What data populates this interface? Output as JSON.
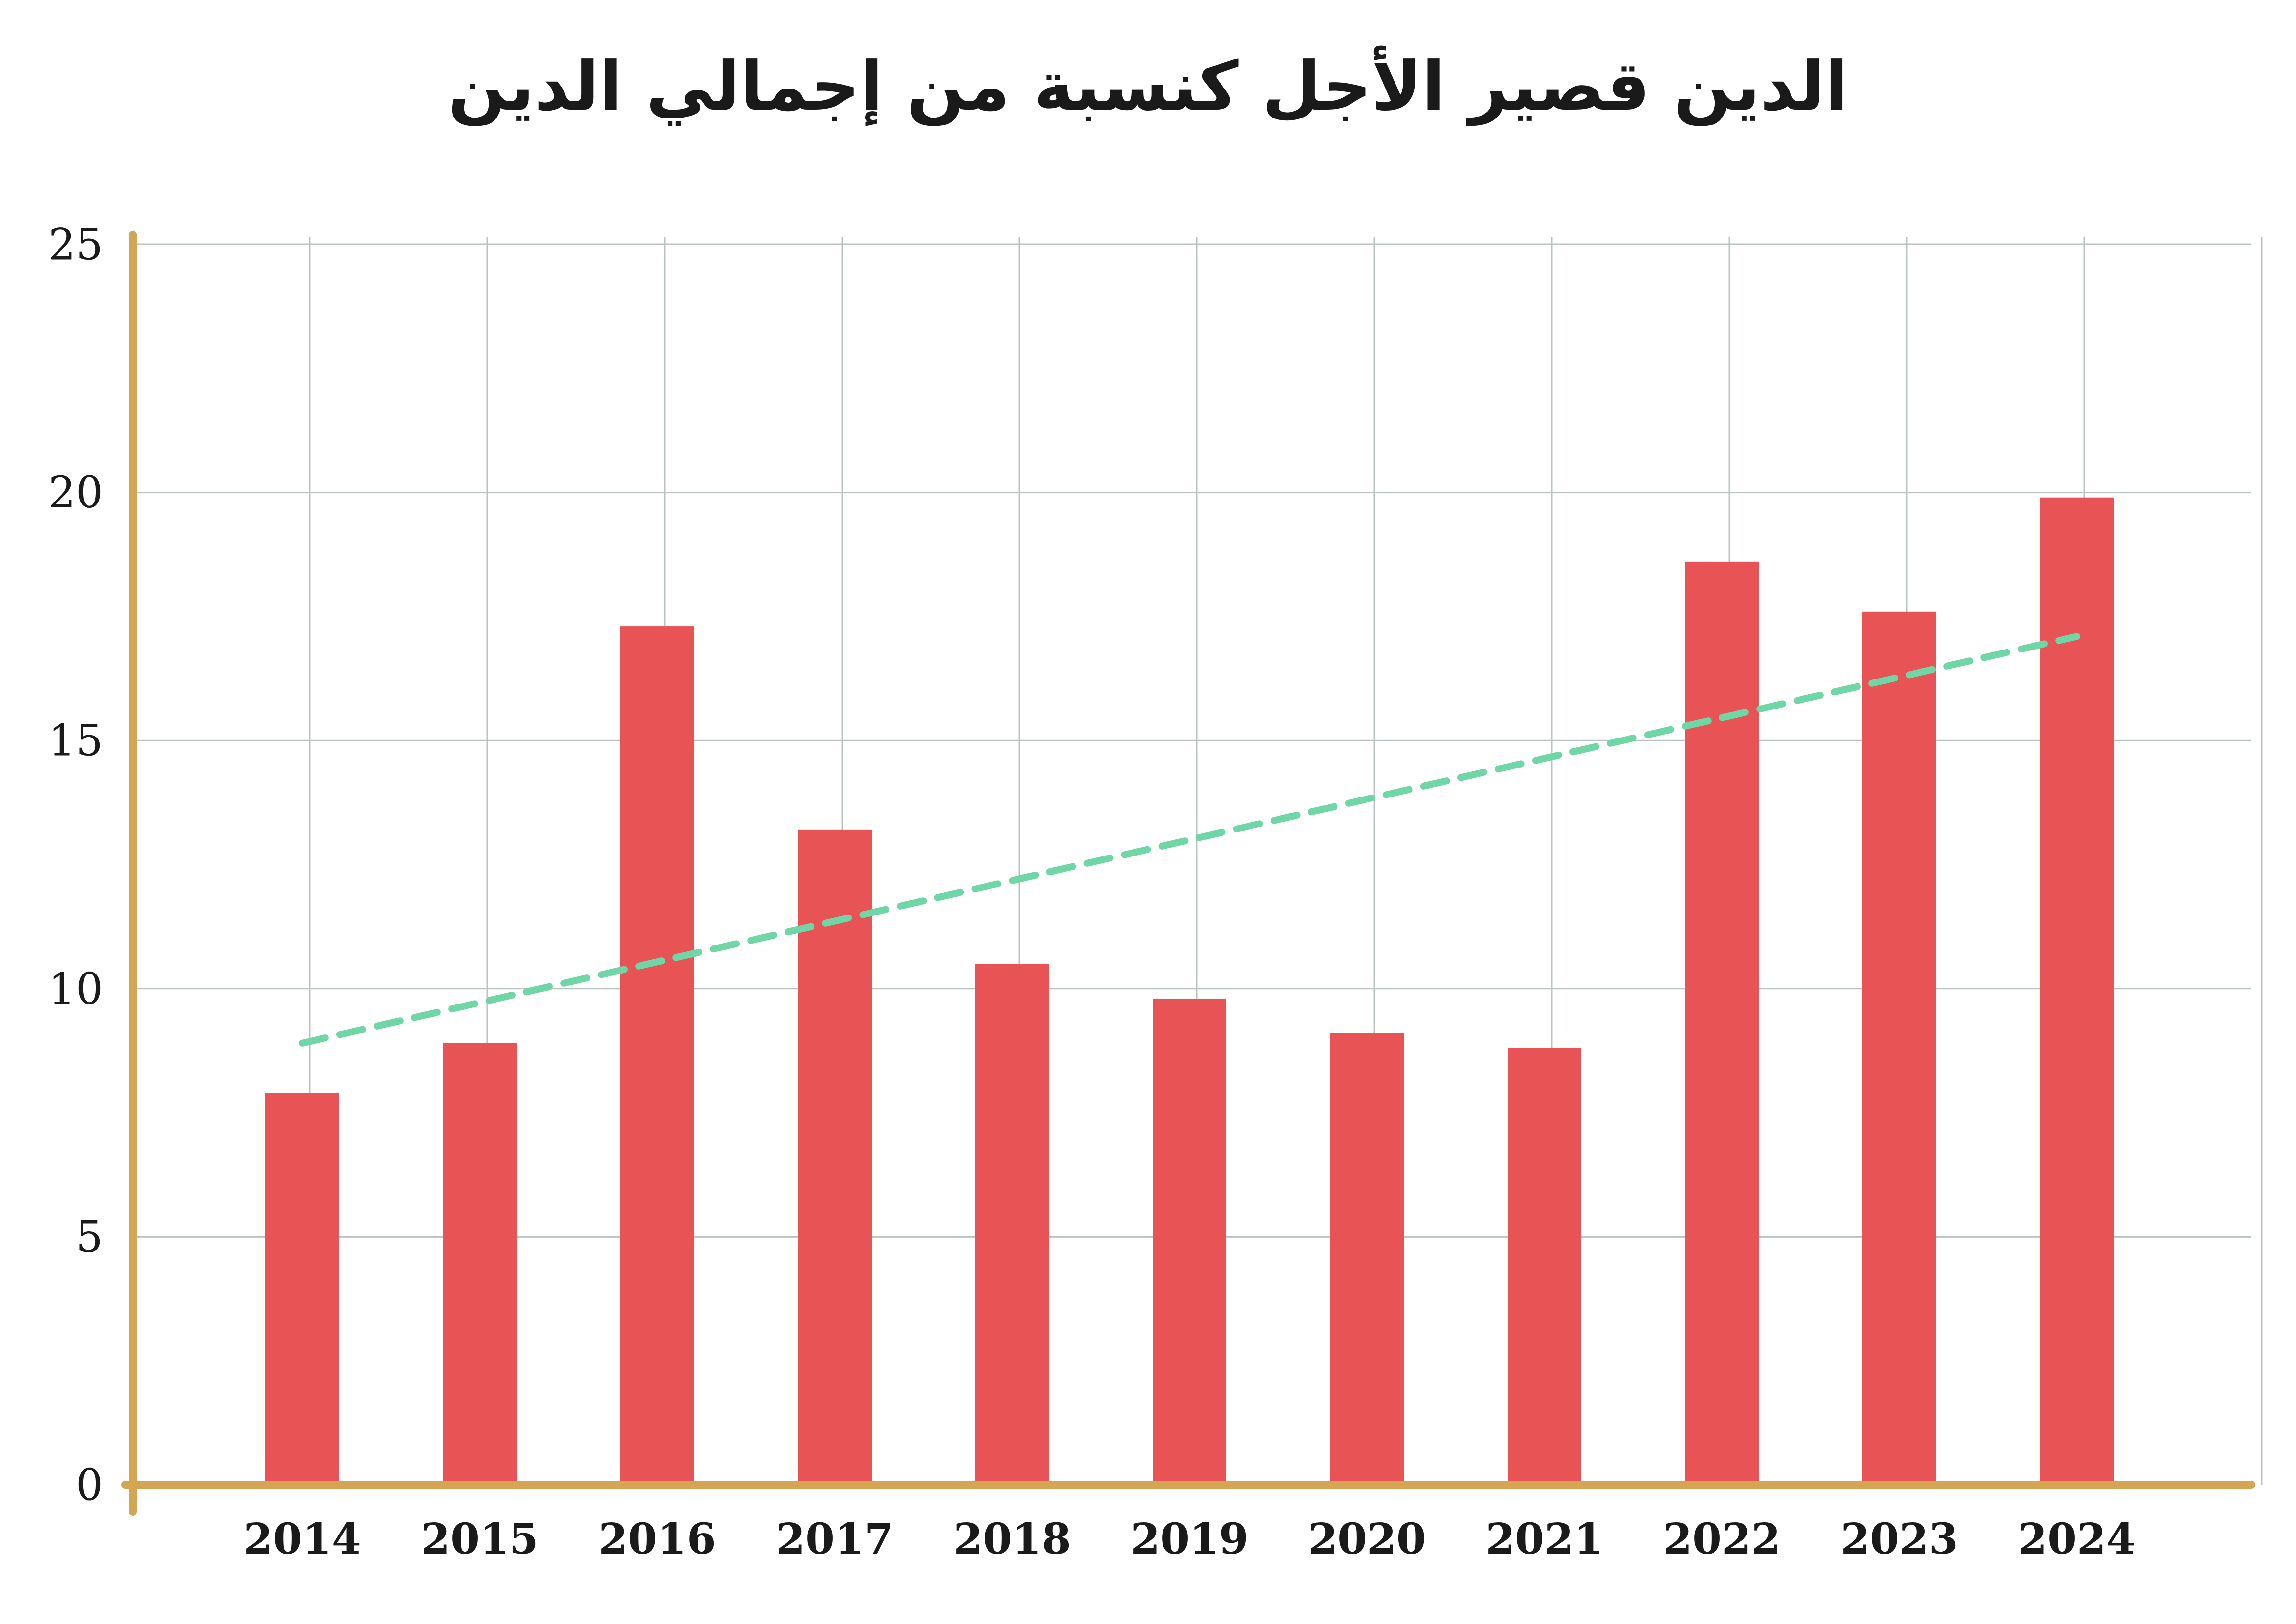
{
  "chart_data": {
    "type": "bar",
    "title": "الدين قصير الأجل كنسبة من إجمالي الدين",
    "xlabel": "",
    "ylabel": "",
    "categories": [
      "2014",
      "2015",
      "2016",
      "2017",
      "2018",
      "2019",
      "2020",
      "2021",
      "2022",
      "2023",
      "2024"
    ],
    "series": [
      {
        "name": "bars",
        "values": [
          7.9,
          8.9,
          17.3,
          13.2,
          10.5,
          9.8,
          9.1,
          8.8,
          18.6,
          17.6,
          19.9
        ]
      }
    ],
    "trendline": {
      "style": "dashed",
      "start": 8.9,
      "end": 17.1
    },
    "ylim": [
      0,
      25
    ],
    "yticks": [
      0,
      5,
      10,
      15,
      20,
      25
    ],
    "grid": true,
    "colors": {
      "bar": "#e85456",
      "trend": "#6ed7a5",
      "axis": "#d4a654",
      "grid": "#b9c4c2"
    }
  }
}
